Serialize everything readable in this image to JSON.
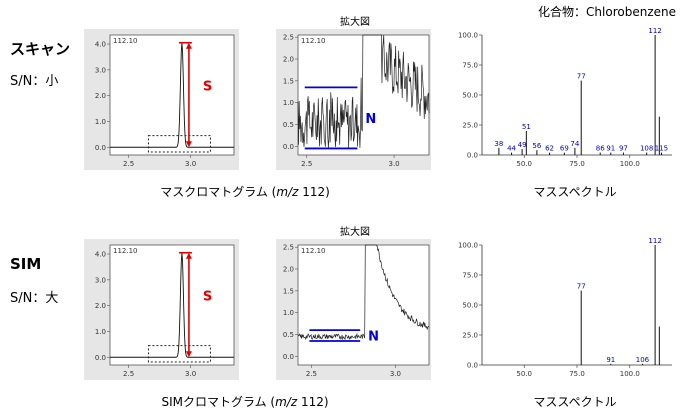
{
  "compound_label": "化合物：Chlorobenzene",
  "rows": [
    {
      "title": "スキャン",
      "sn": "S/N：小",
      "chrom_caption_pre": "マスクロマトグラム (",
      "chrom_caption_mz": "m/z",
      "chrom_caption_post": " 112)",
      "zoom_label": "拡大図",
      "ms_caption": "マススペクトル",
      "chrom_header": "112.10",
      "zoom_header": "112.10",
      "signal_label": "S",
      "noise_label": "N"
    },
    {
      "title": "SIM",
      "sn": "S/N：大",
      "chrom_caption_pre": "SIMクロマトグラム (",
      "chrom_caption_mz": "m/z",
      "chrom_caption_post": " 112)",
      "zoom_label": "拡大図",
      "ms_caption": "マススペクトル",
      "chrom_header": "112.10",
      "zoom_header": "112.10",
      "signal_label": "S",
      "noise_label": "N"
    }
  ],
  "colors": {
    "signal": "#e00000",
    "noise": "#0000e0",
    "peak_label": "#0000c8",
    "panel_bg": "#e6e6e6"
  },
  "chart_data": [
    {
      "type": "line",
      "name": "scan-chromatogram",
      "x_ticks": [
        "2.5",
        "3.0"
      ],
      "y_ticks": [
        "0.0",
        "1.0",
        "2.0",
        "3.0",
        "4.0"
      ],
      "xlim": [
        2.35,
        3.35
      ],
      "ylim": [
        -0.3,
        4.35
      ],
      "peak": {
        "rt": 2.93,
        "height": 4.05,
        "width": 0.012
      }
    },
    {
      "type": "line",
      "name": "scan-zoom",
      "x_ticks": [
        "2.5",
        "3.0"
      ],
      "y_ticks": [
        "0.0",
        "0.5",
        "1.0",
        "1.5",
        "2.0",
        "2.5"
      ],
      "xlim": [
        2.45,
        3.2
      ],
      "ylim": [
        -0.2,
        2.55
      ],
      "noise_band": [
        -0.05,
        1.35
      ],
      "tail_level": 1.4
    },
    {
      "type": "bar",
      "name": "scan-mass-spectrum",
      "x_ticks": [
        "50.0",
        "75.0",
        "100.0"
      ],
      "y_ticks": [
        "0.0",
        "25.0",
        "50.0",
        "75.0",
        "100.0"
      ],
      "xlim": [
        30,
        120
      ],
      "ylim": [
        0,
        100
      ],
      "peaks": [
        {
          "mz": 38,
          "intensity": 6,
          "label": "38"
        },
        {
          "mz": 44,
          "intensity": 2,
          "label": "44"
        },
        {
          "mz": 49,
          "intensity": 5,
          "label": "49"
        },
        {
          "mz": 51,
          "intensity": 20,
          "label": "51"
        },
        {
          "mz": 56,
          "intensity": 4,
          "label": "56"
        },
        {
          "mz": 62,
          "intensity": 2,
          "label": "62"
        },
        {
          "mz": 69,
          "intensity": 2,
          "label": "69"
        },
        {
          "mz": 74,
          "intensity": 6,
          "label": "74"
        },
        {
          "mz": 77,
          "intensity": 62,
          "label": "77"
        },
        {
          "mz": 86,
          "intensity": 2,
          "label": "86"
        },
        {
          "mz": 91,
          "intensity": 2,
          "label": "91"
        },
        {
          "mz": 97,
          "intensity": 2,
          "label": "97"
        },
        {
          "mz": 108,
          "intensity": 2,
          "label": "108"
        },
        {
          "mz": 112,
          "intensity": 100,
          "label": "112"
        },
        {
          "mz": 114,
          "intensity": 32,
          "label": ""
        },
        {
          "mz": 115,
          "intensity": 2,
          "label": "115"
        }
      ]
    },
    {
      "type": "line",
      "name": "sim-chromatogram",
      "x_ticks": [
        "2.5",
        "3.0"
      ],
      "y_ticks": [
        "0.0",
        "1.0",
        "2.0",
        "3.0",
        "4.0"
      ],
      "xlim": [
        2.35,
        3.35
      ],
      "ylim": [
        -0.3,
        4.35
      ],
      "peak": {
        "rt": 2.93,
        "height": 4.05,
        "width": 0.012
      }
    },
    {
      "type": "line",
      "name": "sim-zoom",
      "x_ticks": [
        "2.5",
        "3.0"
      ],
      "y_ticks": [
        "0.0",
        "0.5",
        "1.0",
        "1.5",
        "2.0",
        "2.5"
      ],
      "xlim": [
        2.42,
        3.2
      ],
      "ylim": [
        -0.2,
        2.55
      ],
      "noise_band": [
        0.35,
        0.6
      ],
      "tail_level": 0.6
    },
    {
      "type": "bar",
      "name": "sim-mass-spectrum",
      "x_ticks": [
        "50.0",
        "75.0",
        "100.0"
      ],
      "y_ticks": [
        "0.0",
        "25.0",
        "50.0",
        "75.0",
        "100.0"
      ],
      "xlim": [
        30,
        120
      ],
      "ylim": [
        0,
        100
      ],
      "peaks": [
        {
          "mz": 77,
          "intensity": 62,
          "label": "77"
        },
        {
          "mz": 91,
          "intensity": 1,
          "label": "91"
        },
        {
          "mz": 106,
          "intensity": 1,
          "label": "106"
        },
        {
          "mz": 112,
          "intensity": 100,
          "label": "112"
        },
        {
          "mz": 114,
          "intensity": 32,
          "label": ""
        }
      ]
    }
  ]
}
